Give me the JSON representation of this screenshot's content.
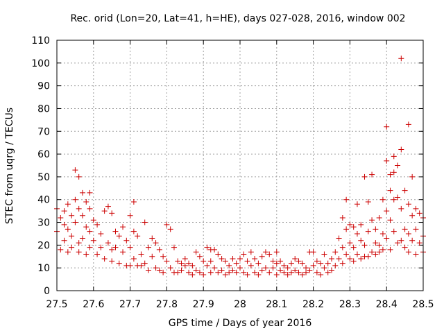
{
  "chart_data": {
    "type": "scatter",
    "title": "Rec. orid (Lon=20, Lat=41, h=HE), days 027-028, 2016, window 002",
    "xlabel": "GPS time / Days of year 2016",
    "ylabel": "STEC from uqrg / TECUs",
    "xlim": [
      27.5,
      28.5
    ],
    "ylim": [
      0,
      110
    ],
    "xticks": [
      "27.5",
      "27.6",
      "27.7",
      "27.8",
      "27.9",
      "28",
      "28.1",
      "28.2",
      "28.3",
      "28.4",
      "28.5"
    ],
    "yticks": [
      "0",
      "10",
      "20",
      "30",
      "40",
      "50",
      "60",
      "70",
      "80",
      "90",
      "100",
      "110"
    ],
    "grid": true,
    "marker": "plus",
    "color": "#cc0000",
    "series": [
      {
        "points": [
          [
            27.5,
            36
          ],
          [
            27.5,
            26
          ],
          [
            27.51,
            32
          ],
          [
            27.51,
            18
          ],
          [
            27.52,
            35
          ],
          [
            27.52,
            22
          ],
          [
            27.52,
            29
          ],
          [
            27.53,
            38
          ],
          [
            27.53,
            27
          ],
          [
            27.53,
            17
          ],
          [
            27.54,
            33
          ],
          [
            27.54,
            24
          ],
          [
            27.54,
            19
          ],
          [
            27.55,
            53
          ],
          [
            27.55,
            40
          ],
          [
            27.55,
            30
          ],
          [
            27.56,
            50
          ],
          [
            27.56,
            36
          ],
          [
            27.56,
            21
          ],
          [
            27.56,
            17
          ],
          [
            27.57,
            43
          ],
          [
            27.57,
            33
          ],
          [
            27.57,
            23
          ],
          [
            27.58,
            39
          ],
          [
            27.58,
            28
          ],
          [
            27.58,
            16
          ],
          [
            27.59,
            43
          ],
          [
            27.59,
            36
          ],
          [
            27.59,
            26
          ],
          [
            27.59,
            19
          ],
          [
            27.6,
            31
          ],
          [
            27.6,
            22
          ],
          [
            27.61,
            29
          ],
          [
            27.61,
            16
          ],
          [
            27.62,
            25
          ],
          [
            27.62,
            19
          ],
          [
            27.63,
            35
          ],
          [
            27.63,
            14
          ],
          [
            27.64,
            37
          ],
          [
            27.64,
            21
          ],
          [
            27.65,
            34
          ],
          [
            27.65,
            18
          ],
          [
            27.65,
            13
          ],
          [
            27.66,
            26
          ],
          [
            27.66,
            19
          ],
          [
            27.67,
            24
          ],
          [
            27.67,
            12
          ],
          [
            27.68,
            28
          ],
          [
            27.68,
            17
          ],
          [
            27.69,
            22
          ],
          [
            27.69,
            11
          ],
          [
            27.7,
            33
          ],
          [
            27.7,
            19
          ],
          [
            27.7,
            11
          ],
          [
            27.71,
            39
          ],
          [
            27.71,
            26
          ],
          [
            27.71,
            14
          ],
          [
            27.72,
            24
          ],
          [
            27.72,
            11
          ],
          [
            27.73,
            16
          ],
          [
            27.73,
            11
          ],
          [
            27.74,
            30
          ],
          [
            27.74,
            12
          ],
          [
            27.75,
            19
          ],
          [
            27.75,
            9
          ],
          [
            27.76,
            23
          ],
          [
            27.76,
            15
          ],
          [
            27.77,
            21
          ],
          [
            27.77,
            10
          ],
          [
            27.78,
            18
          ],
          [
            27.78,
            9
          ],
          [
            27.79,
            15
          ],
          [
            27.79,
            8
          ],
          [
            27.8,
            29
          ],
          [
            27.8,
            13
          ],
          [
            27.81,
            27
          ],
          [
            27.81,
            10
          ],
          [
            27.82,
            19
          ],
          [
            27.82,
            8
          ],
          [
            27.83,
            13
          ],
          [
            27.83,
            8
          ],
          [
            27.84,
            12
          ],
          [
            27.84,
            9
          ],
          [
            27.85,
            14
          ],
          [
            27.85,
            11
          ],
          [
            27.86,
            12
          ],
          [
            27.86,
            8
          ],
          [
            27.87,
            11
          ],
          [
            27.87,
            7
          ],
          [
            27.88,
            17
          ],
          [
            27.88,
            9
          ],
          [
            27.89,
            15
          ],
          [
            27.89,
            8
          ],
          [
            27.9,
            13
          ],
          [
            27.9,
            7
          ],
          [
            27.91,
            19
          ],
          [
            27.91,
            11
          ],
          [
            27.92,
            18
          ],
          [
            27.92,
            13
          ],
          [
            27.92,
            8
          ],
          [
            27.93,
            18
          ],
          [
            27.93,
            10
          ],
          [
            27.94,
            16
          ],
          [
            27.94,
            8
          ],
          [
            27.95,
            14
          ],
          [
            27.95,
            9
          ],
          [
            27.96,
            13
          ],
          [
            27.96,
            7
          ],
          [
            27.97,
            11
          ],
          [
            27.97,
            8
          ],
          [
            27.98,
            14
          ],
          [
            27.98,
            9
          ],
          [
            27.99,
            12
          ],
          [
            27.99,
            8
          ],
          [
            28.0,
            14
          ],
          [
            28.0,
            10
          ],
          [
            28.01,
            16
          ],
          [
            28.01,
            8
          ],
          [
            28.02,
            13
          ],
          [
            28.02,
            7
          ],
          [
            28.03,
            17
          ],
          [
            28.03,
            11
          ],
          [
            28.04,
            14
          ],
          [
            28.04,
            8
          ],
          [
            28.05,
            12
          ],
          [
            28.05,
            7
          ],
          [
            28.06,
            15
          ],
          [
            28.06,
            9
          ],
          [
            28.07,
            17
          ],
          [
            28.07,
            10
          ],
          [
            28.08,
            16
          ],
          [
            28.08,
            8
          ],
          [
            28.09,
            13
          ],
          [
            28.09,
            10
          ],
          [
            28.1,
            17
          ],
          [
            28.1,
            12
          ],
          [
            28.1,
            7
          ],
          [
            28.11,
            13
          ],
          [
            28.11,
            9
          ],
          [
            28.12,
            11
          ],
          [
            28.12,
            8
          ],
          [
            28.13,
            10
          ],
          [
            28.13,
            7
          ],
          [
            28.14,
            12
          ],
          [
            28.14,
            8
          ],
          [
            28.15,
            14
          ],
          [
            28.15,
            9
          ],
          [
            28.16,
            13
          ],
          [
            28.16,
            8
          ],
          [
            28.17,
            12
          ],
          [
            28.17,
            7
          ],
          [
            28.18,
            10
          ],
          [
            28.18,
            8
          ],
          [
            28.19,
            17
          ],
          [
            28.19,
            9
          ],
          [
            28.2,
            17
          ],
          [
            28.2,
            11
          ],
          [
            28.21,
            13
          ],
          [
            28.21,
            8
          ],
          [
            28.22,
            12
          ],
          [
            28.22,
            7
          ],
          [
            28.23,
            16
          ],
          [
            28.23,
            10
          ],
          [
            28.24,
            12
          ],
          [
            28.24,
            8
          ],
          [
            28.25,
            14
          ],
          [
            28.25,
            9
          ],
          [
            28.26,
            17
          ],
          [
            28.26,
            11
          ],
          [
            28.27,
            23
          ],
          [
            28.27,
            14
          ],
          [
            28.28,
            32
          ],
          [
            28.28,
            19
          ],
          [
            28.28,
            12
          ],
          [
            28.29,
            40
          ],
          [
            28.29,
            27
          ],
          [
            28.29,
            16
          ],
          [
            28.3,
            29
          ],
          [
            28.3,
            21
          ],
          [
            28.3,
            14
          ],
          [
            28.31,
            28
          ],
          [
            28.31,
            19
          ],
          [
            28.31,
            13
          ],
          [
            28.32,
            38
          ],
          [
            28.32,
            25
          ],
          [
            28.32,
            16
          ],
          [
            28.33,
            29
          ],
          [
            28.33,
            22
          ],
          [
            28.33,
            14
          ],
          [
            28.34,
            50
          ],
          [
            28.34,
            20
          ],
          [
            28.34,
            15
          ],
          [
            28.35,
            39
          ],
          [
            28.35,
            26
          ],
          [
            28.35,
            15
          ],
          [
            28.36,
            51
          ],
          [
            28.36,
            31
          ],
          [
            28.36,
            17
          ],
          [
            28.37,
            27
          ],
          [
            28.37,
            21
          ],
          [
            28.37,
            16
          ],
          [
            28.38,
            32
          ],
          [
            28.38,
            20
          ],
          [
            28.38,
            17
          ],
          [
            28.39,
            40
          ],
          [
            28.39,
            25
          ],
          [
            28.39,
            18
          ],
          [
            28.4,
            72
          ],
          [
            28.4,
            57
          ],
          [
            28.4,
            35
          ],
          [
            28.4,
            23
          ],
          [
            28.41,
            51
          ],
          [
            28.41,
            44
          ],
          [
            28.41,
            31
          ],
          [
            28.41,
            18
          ],
          [
            28.42,
            59
          ],
          [
            28.42,
            52
          ],
          [
            28.42,
            40
          ],
          [
            28.42,
            26
          ],
          [
            28.43,
            55
          ],
          [
            28.43,
            41
          ],
          [
            28.43,
            21
          ],
          [
            28.44,
            102
          ],
          [
            28.44,
            62
          ],
          [
            28.44,
            36
          ],
          [
            28.44,
            22
          ],
          [
            28.45,
            44
          ],
          [
            28.45,
            27
          ],
          [
            28.45,
            19
          ],
          [
            28.46,
            73
          ],
          [
            28.46,
            38
          ],
          [
            28.46,
            25
          ],
          [
            28.46,
            17
          ],
          [
            28.47,
            50
          ],
          [
            28.47,
            33
          ],
          [
            28.47,
            22
          ],
          [
            28.48,
            36
          ],
          [
            28.48,
            27
          ],
          [
            28.48,
            16
          ],
          [
            28.49,
            34
          ],
          [
            28.49,
            21
          ],
          [
            28.5,
            32
          ],
          [
            28.5,
            24
          ],
          [
            28.5,
            17
          ]
        ]
      }
    ]
  }
}
